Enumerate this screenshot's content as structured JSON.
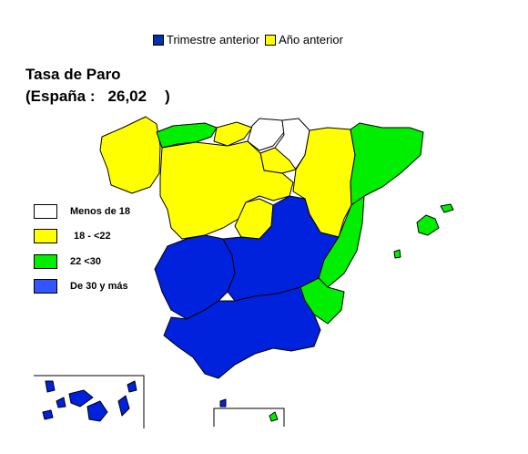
{
  "legend_top": [
    {
      "label": "Trimestre anterior",
      "color": "#0033aa"
    },
    {
      "label": "Año anterior",
      "color": "#ffff00"
    }
  ],
  "title": "Tasa de Paro",
  "subtitle_prefix": "(España :",
  "subtitle_value": "26,02",
  "subtitle_suffix": ")",
  "legend": [
    {
      "label": "Menos de 18",
      "color": "#ffffff"
    },
    {
      "label": "18 - <22",
      "color": "#ffff00"
    },
    {
      "label": "22 <30",
      "color": "#00ee00"
    },
    {
      "label": "De 30 y más",
      "color": "#3355ff"
    }
  ],
  "colors": {
    "white": "#ffffff",
    "yellow": "#ffff00",
    "green": "#00ee00",
    "blue": "#0022dd"
  }
}
